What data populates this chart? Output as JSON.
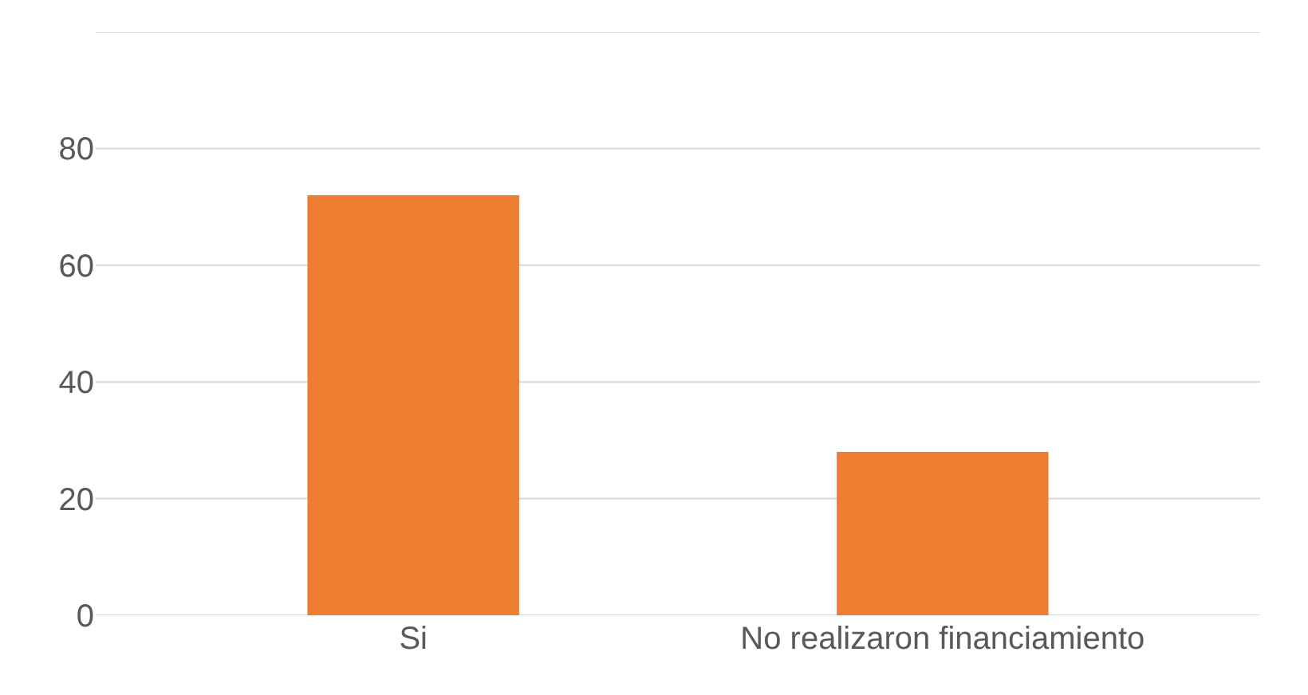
{
  "chart_data": {
    "type": "bar",
    "categories": [
      "Si",
      "No realizaron financiamiento"
    ],
    "values": [
      72,
      28
    ],
    "color": "#ed7d31",
    "ylim": [
      0,
      100
    ],
    "yticks": [
      0,
      20,
      40,
      60,
      80,
      {
        "value": 100,
        "label": null
      }
    ],
    "grid": "y"
  }
}
